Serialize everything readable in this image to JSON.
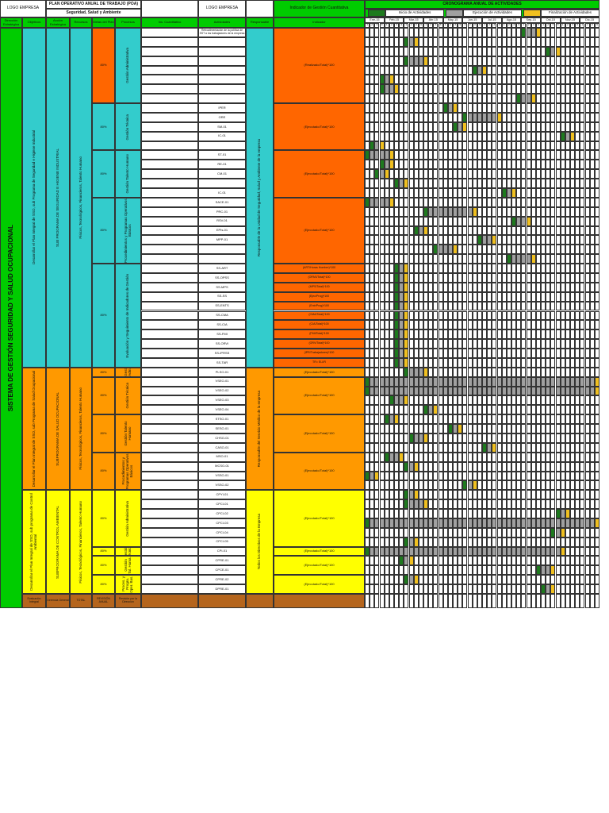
{
  "header": {
    "logo_left": "LOGO EMPRESA",
    "title": "PLAN OPERATIVO ANUAL DE TRABAJO (POA)",
    "subtitle": "Seguridad, Salud y Ambiente",
    "logo_right": "LOGO EMPRESA",
    "indicator_title": "Indicador de Gestión Cuantitativa",
    "schedule_title": "CRONOGRAMA ANUAL DE ACTIVIDADES",
    "legend": {
      "start": "Inicio de Actividades",
      "exec": "Ejecución de Actividades",
      "end": "Finalización de Actividades"
    }
  },
  "columns": [
    "Dirección Estratégica",
    "Objetivos",
    "Acción Estratégica",
    "Recursos",
    "Metas del Plan",
    "Procesos",
    "Ins. Cuantitativo",
    "Actividades",
    "Responsable",
    "Indicador"
  ],
  "months": [
    "Ene-15",
    "Feb-15",
    "Mar-15",
    "Abr-15",
    "May-15",
    "Jun-15",
    "Jul-15",
    "Ago-15",
    "Sep-15",
    "Oct-15",
    "Nov-15",
    "Dic-15"
  ],
  "week_numbers": [
    1,
    2,
    3,
    4
  ],
  "system": "SISTEMA DE GESTIÓN SEGURIDAD Y SALUD OCUPACIONAL",
  "sections": [
    {
      "color": "#33cccc",
      "indicator_color": "#ff6600",
      "objective": "Desarrollar el Plan Integral de SSO, sub Programa de Seguridad e Higiene Industrial",
      "action": "SUB PROGRAMA DE SEGURIDAD E HIGIENE INDUSTRIAL",
      "strategy": "Físicos, Tecnológicos, Financieros, Talento Humano",
      "responsible": "Responsable de la Unidad de Seguridad, Salud y Ambiente de la empresa",
      "subs": [
        {
          "meta": "80%",
          "meta_color": "#ff6600",
          "process": "Gestión Administrativa",
          "indicator": "(Realizado/Total)*100",
          "rows": [
            {
              "act": "Retroalimentación de la política de SST a los trabajadores de la empresa",
              "weeks": [
                32,
                35
              ]
            },
            {
              "weeks": [
                8,
                10
              ]
            },
            {
              "weeks": [
                37,
                39
              ]
            },
            {
              "weeks": [
                8,
                12
              ]
            },
            {
              "weeks": [
                22,
                24
              ]
            },
            {
              "weeks": [
                3,
                5
              ]
            },
            {
              "weeks": [
                3,
                6
              ]
            },
            {
              "weeks": [
                31,
                34
              ]
            }
          ]
        },
        {
          "meta": "80%",
          "process": "Gestión Técnica",
          "indicator": "(Ejecutado/Total)*100",
          "rows": [
            {
              "act": "IPER",
              "weeks": [
                16,
                18
              ]
            },
            {
              "act": "ORE",
              "weeks": [
                20,
                27
              ]
            },
            {
              "act": "SM-01",
              "weeks": [
                18,
                20
              ]
            },
            {
              "act": "IC-01",
              "weeks": [
                40,
                42
              ]
            },
            {
              "weeks": [
                1,
                3
              ]
            }
          ]
        },
        {
          "meta": "80%",
          "process": "Gestión Talento Humano",
          "indicator": "(Ejecutado/Total)*100",
          "rows": [
            {
              "act": "ST-01",
              "weeks": [
                0,
                5
              ]
            },
            {
              "act": "RE-01",
              "weeks": [
                3,
                5
              ]
            },
            {
              "act": "CM-01",
              "weeks": [
                2,
                4
              ]
            },
            {
              "weeks": [
                6,
                8
              ]
            },
            {
              "act": "IC-01",
              "weeks": [
                28,
                30
              ]
            }
          ]
        },
        {
          "meta": "80%",
          "process": "Procedimientos y Programas Operativos Básicos",
          "indicator": "(Ejecutado/Total)*100",
          "rows": [
            {
              "act": "SACE-01",
              "weeks": [
                0,
                5
              ]
            },
            {
              "act": "PRC-01",
              "weeks": [
                12,
                22
              ]
            },
            {
              "act": "RSV-01",
              "weeks": [
                30,
                33
              ]
            },
            {
              "act": "EPIs-01",
              "weeks": [
                10,
                12
              ]
            },
            {
              "act": "MPP-01",
              "weeks": [
                23,
                26
              ]
            },
            {
              "weeks": [
                14,
                18
              ]
            },
            {
              "weeks": [
                29,
                34
              ]
            }
          ]
        },
        {
          "meta": "80%",
          "process": "Evaluación y Seguimiento de Indicadores de Gestión",
          "rows": [
            {
              "act": "SS-ART",
              "indicator": "(ART/Horas Hombre)*100",
              "weeks": [
                6,
                8
              ]
            },
            {
              "act": "SS-OPSS",
              "indicator": "(OPAS/Total)*100",
              "weeks": [
                6,
                8
              ]
            },
            {
              "act": "SS-MPS",
              "indicator": "(MPS/Total)*100",
              "weeks": [
                6,
                8
              ]
            },
            {
              "act": "SS-SS",
              "indicator": "(Ejec/Prog)*100",
              "weeks": [
                6,
                8
              ]
            },
            {
              "act": "SS-ENTS",
              "indicator": "(Entr/Prog)*100",
              "weeks": [
                6,
                8
              ]
            },
            {
              "act": "SS-CMA",
              "indicator": "(CMA/Total)*100",
              "weeks": [
                6,
                8
              ]
            },
            {
              "act": "SS-CIA",
              "indicator": "(CIA/Total)*100",
              "weeks": [
                6,
                8
              ]
            },
            {
              "act": "SS-FMI",
              "indicator": "(FMI/Total)*100",
              "weeks": [
                6,
                8
              ]
            },
            {
              "act": "SS-ORVI",
              "indicator": "(ORV/Total)*100",
              "weeks": [
                6,
                8
              ]
            },
            {
              "act": "SS-IPRSS",
              "indicator": "(IPR/Trabajadores)*100",
              "weeks": [
                6,
                8
              ]
            },
            {
              "act": "SS-TAR",
              "indicator": "TR= ELI/R",
              "weeks": [
                6,
                8
              ]
            }
          ]
        }
      ]
    },
    {
      "color": "#ff9900",
      "indicator_color": "#ff9900",
      "objective": "Desarrollar el Plan Integral de SSO, sub Programa de Salud Ocupacional",
      "action": "SUBPROGRAMA DE SALUD OCUPACIONAL",
      "strategy": "Físicos, Tecnológicos, Financieros, Talento Humano",
      "responsible": "Responsable del Servicio Médico de la empresa",
      "subs": [
        {
          "meta": "80%",
          "process": "Gest. Adm.",
          "indicator": "(Ejecutado/Total)*100",
          "rows": [
            {
              "act": "PLSO-01",
              "weeks": [
                8,
                12
              ]
            }
          ]
        },
        {
          "meta": "80%",
          "process": "Gestión Técnica",
          "indicator": "(Ejecutado/Total)*100",
          "rows": [
            {
              "act": "VSEO-01",
              "weeks": [
                0,
                47
              ]
            },
            {
              "act": "VSEO-02",
              "weeks": [
                0,
                47
              ]
            },
            {
              "act": "VSEO-03",
              "weeks": [
                5,
                8
              ]
            },
            {
              "act": "VSEO-04",
              "weeks": [
                12,
                14
              ]
            }
          ]
        },
        {
          "meta": "80%",
          "process": "Gestión Talento Humano",
          "indicator": "(Ejecutado/Total)*100",
          "rows": [
            {
              "act": "STSO-01",
              "weeks": [
                4,
                6
              ]
            },
            {
              "act": "SESO-01",
              "weeks": [
                17,
                19
              ]
            },
            {
              "act": "CHSO-01",
              "weeks": [
                9,
                12
              ]
            },
            {
              "act": "CASO-01",
              "weeks": [
                24,
                26
              ]
            }
          ]
        },
        {
          "meta": "80%",
          "process": "Procedimientos y Programas Operativos Básicos",
          "indicator": "(Ejecutado/Total)*100",
          "rows": [
            {
              "act": "MSO-01",
              "weeks": [
                4,
                7
              ]
            },
            {
              "act": "MCSO-01",
              "weeks": [
                8,
                10
              ]
            },
            {
              "act": "VSSO-01",
              "weeks": [
                0,
                2
              ]
            },
            {
              "act": "VSSO-02",
              "weeks": [
                20,
                22
              ]
            }
          ]
        }
      ]
    },
    {
      "color": "#ffff00",
      "indicator_color": "#ffff00",
      "objective": "Desarrollar el Plan Integral de SSO, sub programa de Control Ambiental",
      "action": "SUBPROGRAMA DE CONTROL AMBIENTAL",
      "strategy": "Físicos, Tecnológicos, Financieros, Talento Humano",
      "responsible": "Todos los Directivos de la Empresa",
      "subs": [
        {
          "meta": "80%",
          "process": "Gestión Administrativa",
          "indicator": "(Ejecutado/Total)*100",
          "rows": [
            {
              "act": "CPYI-01",
              "weeks": [
                8,
                10
              ]
            },
            {
              "act": "CPCI-01",
              "weeks": [
                8,
                12
              ]
            },
            {
              "act": "CPCI-02",
              "weeks": [
                39,
                41
              ]
            },
            {
              "act": "CPCI-03",
              "weeks": [
                0,
                47
              ]
            },
            {
              "act": "CPCI-04",
              "weeks": [
                38,
                40
              ]
            },
            {
              "act": "CPCI-05",
              "weeks": [
                8,
                10
              ]
            }
          ]
        },
        {
          "meta": "80%",
          "process": "Gestión Técnica",
          "indicator": "(Ejecutado/Total)*100",
          "rows": [
            {
              "act": "CPI-01",
              "weeks": [
                0,
                40
              ]
            }
          ]
        },
        {
          "meta": "80%",
          "process": "Gestión Tal. Huma.",
          "indicator": "(Ejecutado/Total)*100",
          "rows": [
            {
              "act": "CPRE-01",
              "weeks": [
                7,
                9
              ]
            },
            {
              "act": "CPCE-01",
              "weeks": [
                35,
                38
              ]
            }
          ]
        },
        {
          "meta": "80%",
          "process": "Proces. y Progra. Oper. Bas.",
          "indicator": "(Ejecutado/Total)*100",
          "rows": [
            {
              "act": "CPRE-02",
              "weeks": [
                8,
                10
              ]
            },
            {
              "act": "DPRE-01",
              "weeks": [
                36,
                38
              ]
            }
          ]
        }
      ]
    }
  ],
  "footer": [
    "Evaluación Integral",
    "Gerencia General",
    "TOTAL",
    "REVISIÓN ANUAL",
    "Revisión por la Dirección"
  ]
}
